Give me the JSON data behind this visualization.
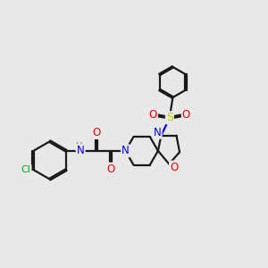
{
  "bg_color": "#e8e8e8",
  "bond_color": "#1a1a1a",
  "N_color": "#0000ee",
  "O_color": "#ee0000",
  "S_color": "#cccc00",
  "Cl_color": "#00aa00",
  "H_color": "#777777",
  "line_width": 1.6,
  "font_size": 8.5,
  "xlim": [
    0,
    10
  ],
  "ylim": [
    0,
    10
  ]
}
